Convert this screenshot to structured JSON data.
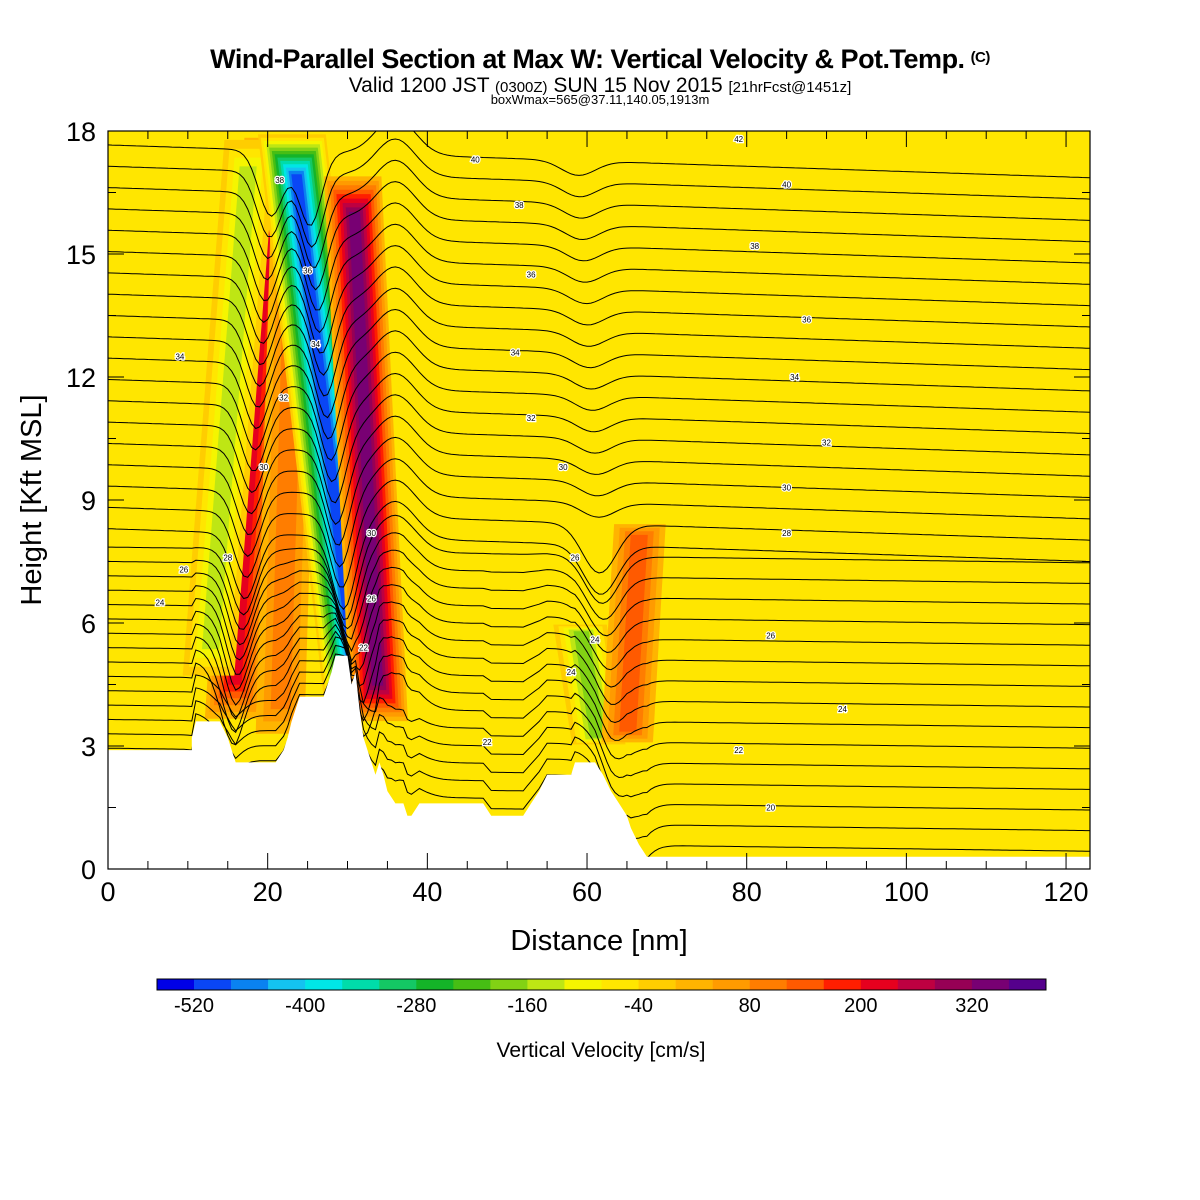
{
  "header": {
    "title": "Wind-Parallel Section at Max W: Vertical Velocity & Pot.Temp.",
    "copyright": "(C)",
    "subtitle_a": "Valid 1200 JST",
    "subtitle_b": "(0300Z)",
    "subtitle_c": "SUN 15 Nov 2015",
    "subtitle_d": "[21hrFcst@1451z]",
    "subtitle_e": "boxWmax=565@37.11,140.05,1913m"
  },
  "chart_data": {
    "type": "heatmap",
    "xlabel": "Distance [nm]",
    "ylabel": "Height [Kft MSL]",
    "xlim": [
      0,
      123
    ],
    "ylim": [
      0,
      18
    ],
    "x_ticks": [
      "0",
      "20",
      "40",
      "60",
      "80",
      "100",
      "120"
    ],
    "y_ticks": [
      "0",
      "3",
      "6",
      "9",
      "12",
      "15",
      "18"
    ],
    "terrain_profile": [
      {
        "x": 0,
        "h": 2.9
      },
      {
        "x": 10.5,
        "h": 2.9
      },
      {
        "x": 10.5,
        "h": 3.2
      },
      {
        "x": 11,
        "h": 3.6
      },
      {
        "x": 14,
        "h": 3.6
      },
      {
        "x": 15,
        "h": 3.2
      },
      {
        "x": 15.5,
        "h": 2.9
      },
      {
        "x": 16,
        "h": 2.6
      },
      {
        "x": 21,
        "h": 2.6
      },
      {
        "x": 22,
        "h": 2.9
      },
      {
        "x": 22.5,
        "h": 3.2
      },
      {
        "x": 23,
        "h": 3.6
      },
      {
        "x": 23.5,
        "h": 3.9
      },
      {
        "x": 24,
        "h": 4.2
      },
      {
        "x": 27,
        "h": 4.2
      },
      {
        "x": 27.5,
        "h": 4.5
      },
      {
        "x": 28,
        "h": 4.8
      },
      {
        "x": 28.5,
        "h": 5.2
      },
      {
        "x": 30,
        "h": 5.2
      },
      {
        "x": 30.5,
        "h": 4.5
      },
      {
        "x": 31,
        "h": 4.8
      },
      {
        "x": 31.5,
        "h": 3.9
      },
      {
        "x": 32,
        "h": 3.2
      },
      {
        "x": 32.5,
        "h": 2.9
      },
      {
        "x": 33,
        "h": 2.6
      },
      {
        "x": 33.5,
        "h": 2.3
      },
      {
        "x": 34,
        "h": 2.6
      },
      {
        "x": 34.5,
        "h": 2.3
      },
      {
        "x": 35,
        "h": 1.9
      },
      {
        "x": 36,
        "h": 1.6
      },
      {
        "x": 37,
        "h": 1.6
      },
      {
        "x": 37.5,
        "h": 1.3
      },
      {
        "x": 38,
        "h": 1.3
      },
      {
        "x": 39,
        "h": 1.6
      },
      {
        "x": 47,
        "h": 1.6
      },
      {
        "x": 48,
        "h": 1.3
      },
      {
        "x": 52,
        "h": 1.3
      },
      {
        "x": 53,
        "h": 1.6
      },
      {
        "x": 54,
        "h": 1.9
      },
      {
        "x": 55,
        "h": 2.3
      },
      {
        "x": 58,
        "h": 2.3
      },
      {
        "x": 58.5,
        "h": 2.6
      },
      {
        "x": 61,
        "h": 2.6
      },
      {
        "x": 62,
        "h": 2.3
      },
      {
        "x": 63,
        "h": 1.9
      },
      {
        "x": 64,
        "h": 1.6
      },
      {
        "x": 65,
        "h": 1.3
      },
      {
        "x": 65.5,
        "h": 1.0
      },
      {
        "x": 66.5,
        "h": 0.6
      },
      {
        "x": 67.5,
        "h": 0.3
      },
      {
        "x": 68.5,
        "h": 0.3
      },
      {
        "x": 69,
        "h": 0.3
      },
      {
        "x": 80,
        "h": 0.3
      },
      {
        "x": 123,
        "h": 0.3
      }
    ],
    "vertical_velocity_features": [
      {
        "type": "updraft",
        "x_center": 15.5,
        "y_bottom": 3.5,
        "y_top": 18,
        "lean_per_kft": 0.35,
        "peak_cms": 200
      },
      {
        "type": "downdraft",
        "x_center": 12.5,
        "y_bottom": 4.5,
        "y_top": 18,
        "lean_per_kft": 0.4,
        "peak_cms": -160
      },
      {
        "type": "updraft",
        "x_center": 21.5,
        "y_bottom": 3.0,
        "y_top": 18,
        "lean_per_kft": 0.15,
        "peak_cms": 80
      },
      {
        "type": "downdraft",
        "x_center": 31.5,
        "y_bottom": 3.8,
        "y_top": 18,
        "lean_per_kft": -0.6,
        "peak_cms": -520
      },
      {
        "type": "updraft",
        "x_center": 34.0,
        "y_bottom": 3.5,
        "y_top": 17,
        "lean_per_kft": -0.25,
        "peak_cms": 320
      },
      {
        "type": "downdraft",
        "x_center": 61.5,
        "y_bottom": 3.0,
        "y_top": 6.0,
        "lean_per_kft": -0.8,
        "peak_cms": -200
      },
      {
        "type": "updraft",
        "x_center": 65.0,
        "y_bottom": 3.0,
        "y_top": 8.5,
        "lean_per_kft": 0.3,
        "peak_cms": 140
      }
    ],
    "theta_contour_labels": [
      {
        "x": 6.5,
        "y": 6.5,
        "text": "24"
      },
      {
        "x": 9.5,
        "y": 7.3,
        "text": "26"
      },
      {
        "x": 15,
        "y": 7.6,
        "text": "28"
      },
      {
        "x": 19.5,
        "y": 9.8,
        "text": "30"
      },
      {
        "x": 22,
        "y": 11.5,
        "text": "32"
      },
      {
        "x": 9,
        "y": 12.5,
        "text": "34"
      },
      {
        "x": 26,
        "y": 12.8,
        "text": "34"
      },
      {
        "x": 25,
        "y": 14.6,
        "text": "36"
      },
      {
        "x": 21.5,
        "y": 16.8,
        "text": "38"
      },
      {
        "x": 33,
        "y": 8.2,
        "text": "30"
      },
      {
        "x": 33,
        "y": 6.6,
        "text": "26"
      },
      {
        "x": 32,
        "y": 5.4,
        "text": "22"
      },
      {
        "x": 47.5,
        "y": 3.1,
        "text": "22"
      },
      {
        "x": 58,
        "y": 4.8,
        "text": "24"
      },
      {
        "x": 61,
        "y": 5.6,
        "text": "24"
      },
      {
        "x": 58.5,
        "y": 7.6,
        "text": "26"
      },
      {
        "x": 57,
        "y": 9.8,
        "text": "30"
      },
      {
        "x": 53,
        "y": 11.0,
        "text": "32"
      },
      {
        "x": 51,
        "y": 12.6,
        "text": "34"
      },
      {
        "x": 53,
        "y": 14.5,
        "text": "36"
      },
      {
        "x": 51.5,
        "y": 16.2,
        "text": "38"
      },
      {
        "x": 46,
        "y": 17.3,
        "text": "40"
      },
      {
        "x": 79,
        "y": 17.8,
        "text": "42"
      },
      {
        "x": 85,
        "y": 16.7,
        "text": "40"
      },
      {
        "x": 81,
        "y": 15.2,
        "text": "38"
      },
      {
        "x": 87.5,
        "y": 13.4,
        "text": "36"
      },
      {
        "x": 86,
        "y": 12.0,
        "text": "34"
      },
      {
        "x": 90,
        "y": 10.4,
        "text": "32"
      },
      {
        "x": 85,
        "y": 9.3,
        "text": "30"
      },
      {
        "x": 85,
        "y": 8.2,
        "text": "28"
      },
      {
        "x": 83,
        "y": 5.7,
        "text": "26"
      },
      {
        "x": 92,
        "y": 3.9,
        "text": "24"
      },
      {
        "x": 79,
        "y": 2.9,
        "text": "22"
      },
      {
        "x": 83,
        "y": 1.5,
        "text": "20"
      }
    ]
  },
  "legend": {
    "label": "Vertical Velocity [cm/s]",
    "tick_labels": [
      "-520",
      "-400",
      "-280",
      "-160",
      "-40",
      "80",
      "200",
      "320"
    ],
    "min": -560,
    "step": 40,
    "colors": [
      "#0000e6",
      "#0a46f5",
      "#0a82f0",
      "#14c3f0",
      "#00e6e6",
      "#00dcaa",
      "#14c864",
      "#14b428",
      "#46be14",
      "#82d214",
      "#bee614",
      "#f5f500",
      "#ffe600",
      "#ffcd00",
      "#ffb400",
      "#ff9b00",
      "#ff7d00",
      "#ff5a00",
      "#ff1e00",
      "#e6001e",
      "#be0041",
      "#960055",
      "#780073",
      "#55008c"
    ]
  }
}
